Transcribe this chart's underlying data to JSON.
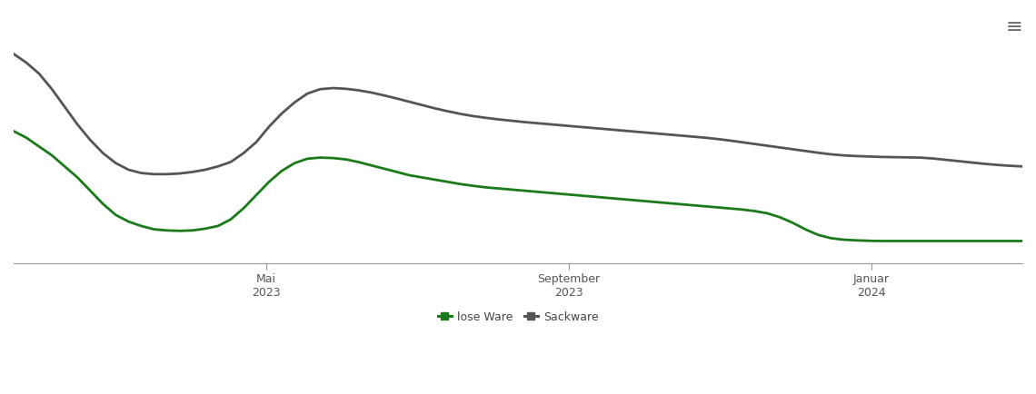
{
  "background_color": "#ffffff",
  "grid_color": "#d8d8d8",
  "line_color_lose": "#1a7a1a",
  "line_color_sack": "#555555",
  "line_width": 2.0,
  "legend_labels": [
    "lose Ware",
    "Sackware"
  ],
  "x_ticks_labels": [
    "Mai\n2023",
    "September\n2023",
    "Januar\n2024"
  ],
  "x_ticks_positions": [
    0.25,
    0.55,
    0.85
  ],
  "lose_ware": [
    0.6,
    0.57,
    0.53,
    0.49,
    0.44,
    0.39,
    0.33,
    0.27,
    0.22,
    0.19,
    0.17,
    0.155,
    0.15,
    0.148,
    0.15,
    0.158,
    0.17,
    0.2,
    0.25,
    0.31,
    0.37,
    0.42,
    0.455,
    0.475,
    0.48,
    0.478,
    0.472,
    0.46,
    0.445,
    0.43,
    0.415,
    0.4,
    0.39,
    0.38,
    0.37,
    0.36,
    0.352,
    0.345,
    0.34,
    0.335,
    0.33,
    0.325,
    0.32,
    0.315,
    0.31,
    0.305,
    0.3,
    0.295,
    0.29,
    0.285,
    0.28,
    0.275,
    0.27,
    0.265,
    0.26,
    0.255,
    0.25,
    0.245,
    0.238,
    0.228,
    0.21,
    0.185,
    0.155,
    0.13,
    0.115,
    0.108,
    0.105,
    0.103,
    0.102,
    0.102,
    0.102,
    0.102,
    0.102,
    0.102,
    0.102,
    0.102,
    0.102,
    0.102,
    0.102,
    0.102
  ],
  "sackware": [
    0.95,
    0.91,
    0.86,
    0.79,
    0.71,
    0.63,
    0.56,
    0.5,
    0.455,
    0.425,
    0.41,
    0.405,
    0.405,
    0.408,
    0.415,
    0.425,
    0.44,
    0.46,
    0.5,
    0.55,
    0.62,
    0.68,
    0.73,
    0.77,
    0.79,
    0.795,
    0.792,
    0.785,
    0.775,
    0.762,
    0.748,
    0.733,
    0.718,
    0.703,
    0.69,
    0.678,
    0.668,
    0.66,
    0.653,
    0.647,
    0.641,
    0.636,
    0.631,
    0.626,
    0.621,
    0.616,
    0.611,
    0.606,
    0.601,
    0.596,
    0.591,
    0.586,
    0.581,
    0.576,
    0.571,
    0.565,
    0.558,
    0.55,
    0.542,
    0.534,
    0.526,
    0.518,
    0.51,
    0.502,
    0.495,
    0.49,
    0.487,
    0.485,
    0.483,
    0.482,
    0.481,
    0.48,
    0.476,
    0.47,
    0.464,
    0.458,
    0.452,
    0.447,
    0.443,
    0.44
  ]
}
